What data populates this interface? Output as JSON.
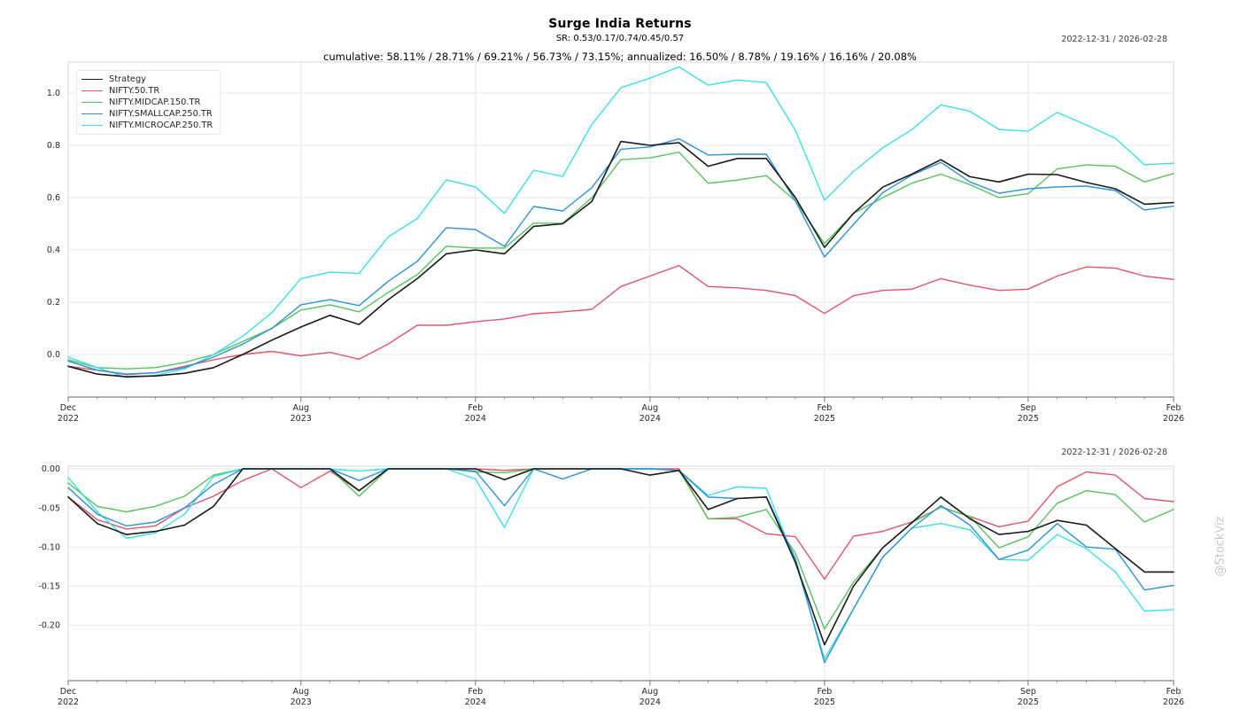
{
  "header": {
    "title": "Surge India Returns",
    "subtitle": "SR: 0.53/0.17/0.74/0.45/0.57",
    "stats_line": "cumulative: 58.11% / 28.71% / 69.21% / 56.73% / 73.15%; annualized: 16.50% / 8.78% / 19.16% / 16.16% / 20.08%",
    "date_range_top": "2022-12-31 / 2026-02-28",
    "date_range_bottom": "2022-12-31 / 2026-02-28"
  },
  "watermark": "@StockViz",
  "chart_data": [
    {
      "type": "line",
      "name": "cumulative-returns",
      "x": [
        "2022-12",
        "2023-01",
        "2023-02",
        "2023-03",
        "2023-04",
        "2023-05",
        "2023-06",
        "2023-07",
        "2023-08",
        "2023-09",
        "2023-10",
        "2023-11",
        "2023-12",
        "2024-01",
        "2024-02",
        "2024-03",
        "2024-04",
        "2024-05",
        "2024-06",
        "2024-07",
        "2024-08",
        "2024-09",
        "2024-10",
        "2024-11",
        "2024-12",
        "2025-01",
        "2025-02",
        "2025-03",
        "2025-04",
        "2025-05",
        "2025-06",
        "2025-07",
        "2025-08",
        "2025-09",
        "2025-10",
        "2025-11",
        "2025-12",
        "2026-01",
        "2026-02"
      ],
      "x_ticks": [
        {
          "index": 0,
          "line1": "Dec",
          "line2": "2022"
        },
        {
          "index": 8,
          "line1": "Aug",
          "line2": "2023"
        },
        {
          "index": 14,
          "line1": "Feb",
          "line2": "2024"
        },
        {
          "index": 20,
          "line1": "Aug",
          "line2": "2024"
        },
        {
          "index": 26,
          "line1": "Feb",
          "line2": "2025"
        },
        {
          "index": 33,
          "line1": "Sep",
          "line2": "2025"
        },
        {
          "index": 38,
          "line1": "Feb",
          "line2": "2026"
        }
      ],
      "yticks": [
        {
          "value": 1.0,
          "label": "1.0"
        },
        {
          "value": 0.8,
          "label": "0.8"
        },
        {
          "value": 0.6,
          "label": "0.6"
        },
        {
          "value": 0.4,
          "label": "0.4"
        },
        {
          "value": 0.2,
          "label": "0.2"
        },
        {
          "value": 0.0,
          "label": "0.0"
        }
      ],
      "ylim": [
        -0.163,
        1.119
      ],
      "grid": true,
      "legend_position": "top-left",
      "series": [
        {
          "name": "Strategy",
          "color": "#1a1a1a",
          "width": 1.6,
          "values": [
            -0.045,
            -0.075,
            -0.085,
            -0.082,
            -0.072,
            -0.05,
            0.0,
            0.055,
            0.105,
            0.15,
            0.115,
            0.21,
            0.29,
            0.385,
            0.4,
            0.385,
            0.49,
            0.5,
            0.585,
            0.815,
            0.8,
            0.81,
            0.72,
            0.75,
            0.75,
            0.6,
            0.41,
            0.54,
            0.64,
            0.69,
            0.745,
            0.68,
            0.66,
            0.69,
            0.688,
            0.658,
            0.634,
            0.575,
            0.5811
          ]
        },
        {
          "name": "NIFTY.50.TR",
          "color": "#e15669",
          "width": 1.4,
          "values": [
            -0.045,
            -0.06,
            -0.077,
            -0.07,
            -0.045,
            -0.02,
            0.0,
            0.012,
            -0.005,
            0.008,
            -0.018,
            0.04,
            0.112,
            0.112,
            0.125,
            0.136,
            0.156,
            0.163,
            0.173,
            0.26,
            0.3,
            0.34,
            0.26,
            0.255,
            0.245,
            0.225,
            0.157,
            0.225,
            0.245,
            0.25,
            0.29,
            0.265,
            0.245,
            0.25,
            0.3,
            0.335,
            0.33,
            0.3,
            0.2871
          ]
        },
        {
          "name": "NIFTY.MIDCAP.150.TR",
          "color": "#56c45c",
          "width": 1.4,
          "values": [
            -0.02,
            -0.05,
            -0.055,
            -0.05,
            -0.03,
            0.0,
            0.05,
            0.1,
            0.17,
            0.19,
            0.163,
            0.237,
            0.305,
            0.414,
            0.407,
            0.407,
            0.502,
            0.502,
            0.6,
            0.745,
            0.752,
            0.774,
            0.655,
            0.667,
            0.684,
            0.587,
            0.424,
            0.54,
            0.6,
            0.655,
            0.69,
            0.65,
            0.6,
            0.615,
            0.71,
            0.725,
            0.72,
            0.66,
            0.6921
          ]
        },
        {
          "name": "NIFTY.SMALLCAP.250.TR",
          "color": "#2d93dc",
          "width": 1.4,
          "values": [
            -0.025,
            -0.06,
            -0.075,
            -0.07,
            -0.05,
            -0.01,
            0.04,
            0.1,
            0.19,
            0.21,
            0.187,
            0.28,
            0.356,
            0.485,
            0.478,
            0.414,
            0.566,
            0.549,
            0.638,
            0.785,
            0.794,
            0.825,
            0.763,
            0.766,
            0.766,
            0.587,
            0.373,
            0.498,
            0.619,
            0.686,
            0.735,
            0.66,
            0.617,
            0.634,
            0.641,
            0.644,
            0.627,
            0.553,
            0.5673
          ]
        },
        {
          "name": "NIFTY.MICROCAP.250.TR",
          "color": "#3cdfe6",
          "width": 1.4,
          "values": [
            -0.01,
            -0.05,
            -0.088,
            -0.08,
            -0.055,
            0.0,
            0.07,
            0.16,
            0.29,
            0.315,
            0.31,
            0.45,
            0.52,
            0.668,
            0.641,
            0.54,
            0.705,
            0.681,
            0.88,
            1.02,
            1.057,
            1.1,
            1.03,
            1.05,
            1.04,
            0.857,
            0.59,
            0.7,
            0.79,
            0.86,
            0.955,
            0.93,
            0.861,
            0.854,
            0.926,
            0.878,
            0.827,
            0.726,
            0.7315
          ]
        }
      ]
    },
    {
      "type": "line",
      "name": "drawdowns",
      "x": [
        "2022-12",
        "2023-01",
        "2023-02",
        "2023-03",
        "2023-04",
        "2023-05",
        "2023-06",
        "2023-07",
        "2023-08",
        "2023-09",
        "2023-10",
        "2023-11",
        "2023-12",
        "2024-01",
        "2024-02",
        "2024-03",
        "2024-04",
        "2024-05",
        "2024-06",
        "2024-07",
        "2024-08",
        "2024-09",
        "2024-10",
        "2024-11",
        "2024-12",
        "2025-01",
        "2025-02",
        "2025-03",
        "2025-04",
        "2025-05",
        "2025-06",
        "2025-07",
        "2025-08",
        "2025-09",
        "2025-10",
        "2025-11",
        "2025-12",
        "2026-01",
        "2026-02"
      ],
      "x_ticks": [
        {
          "index": 0,
          "line1": "Dec",
          "line2": "2022"
        },
        {
          "index": 8,
          "line1": "Aug",
          "line2": "2023"
        },
        {
          "index": 14,
          "line1": "Feb",
          "line2": "2024"
        },
        {
          "index": 20,
          "line1": "Aug",
          "line2": "2024"
        },
        {
          "index": 26,
          "line1": "Feb",
          "line2": "2025"
        },
        {
          "index": 33,
          "line1": "Sep",
          "line2": "2025"
        },
        {
          "index": 38,
          "line1": "Feb",
          "line2": "2026"
        }
      ],
      "yticks": [
        {
          "value": 0.0,
          "label": "0.00"
        },
        {
          "value": -0.05,
          "label": "-0.05"
        },
        {
          "value": -0.1,
          "label": "-0.10"
        },
        {
          "value": -0.15,
          "label": "-0.15"
        },
        {
          "value": -0.2,
          "label": "-0.20"
        }
      ],
      "ylim": [
        -0.271,
        0.0034
      ],
      "grid": true,
      "legend_position": "none",
      "series": [
        {
          "name": "Strategy",
          "color": "#1a1a1a",
          "width": 1.6,
          "values": [
            -0.036,
            -0.07,
            -0.084,
            -0.08,
            -0.072,
            -0.048,
            0,
            0,
            0,
            0,
            -0.028,
            0,
            0,
            0,
            0,
            -0.014,
            0,
            0,
            0,
            0,
            -0.008,
            -0.002,
            -0.052,
            -0.038,
            -0.036,
            -0.12,
            -0.225,
            -0.15,
            -0.101,
            -0.069,
            -0.036,
            -0.064,
            -0.084,
            -0.08,
            -0.066,
            -0.072,
            -0.102,
            -0.132,
            -0.132
          ]
        },
        {
          "name": "NIFTY.50.TR",
          "color": "#e15669",
          "width": 1.4,
          "values": [
            -0.036,
            -0.065,
            -0.077,
            -0.073,
            -0.05,
            -0.035,
            -0.015,
            0,
            -0.024,
            -0.003,
            -0.028,
            0,
            0,
            0,
            0,
            -0.002,
            0,
            0,
            0,
            0,
            0,
            0,
            -0.064,
            -0.064,
            -0.083,
            -0.087,
            -0.141,
            -0.086,
            -0.08,
            -0.068,
            -0.049,
            -0.061,
            -0.074,
            -0.067,
            -0.023,
            -0.004,
            -0.008,
            -0.038,
            -0.042
          ]
        },
        {
          "name": "NIFTY.MIDCAP.150.TR",
          "color": "#56c45c",
          "width": 1.4,
          "values": [
            -0.018,
            -0.048,
            -0.055,
            -0.048,
            -0.035,
            -0.008,
            0,
            0,
            0,
            0,
            -0.035,
            0,
            0,
            0,
            -0.004,
            -0.005,
            0,
            0,
            0,
            0,
            0,
            -0.002,
            -0.064,
            -0.062,
            -0.052,
            -0.108,
            -0.205,
            -0.145,
            -0.101,
            -0.069,
            -0.049,
            -0.061,
            -0.101,
            -0.087,
            -0.044,
            -0.028,
            -0.033,
            -0.068,
            -0.052
          ]
        },
        {
          "name": "NIFTY.SMALLCAP.250.TR",
          "color": "#2d93dc",
          "width": 1.4,
          "values": [
            -0.024,
            -0.058,
            -0.073,
            -0.068,
            -0.05,
            -0.02,
            0,
            0,
            0,
            0,
            -0.015,
            0,
            0,
            0,
            -0.003,
            -0.047,
            0,
            -0.013,
            0,
            0,
            0,
            -0.002,
            -0.036,
            -0.038,
            -0.036,
            -0.115,
            -0.248,
            -0.179,
            -0.113,
            -0.076,
            -0.047,
            -0.072,
            -0.116,
            -0.104,
            -0.07,
            -0.1,
            -0.103,
            -0.155,
            -0.149
          ]
        },
        {
          "name": "NIFTY.MICROCAP.250.TR",
          "color": "#3cdfe6",
          "width": 1.4,
          "values": [
            -0.011,
            -0.055,
            -0.089,
            -0.082,
            -0.058,
            -0.01,
            0,
            0,
            0,
            0,
            -0.003,
            0,
            0,
            0,
            -0.013,
            -0.075,
            0,
            -0.013,
            0,
            0,
            0,
            -0.002,
            -0.034,
            -0.023,
            -0.025,
            -0.119,
            -0.243,
            -0.179,
            -0.113,
            -0.076,
            -0.07,
            -0.078,
            -0.116,
            -0.117,
            -0.084,
            -0.102,
            -0.132,
            -0.182,
            -0.18
          ]
        }
      ]
    }
  ]
}
